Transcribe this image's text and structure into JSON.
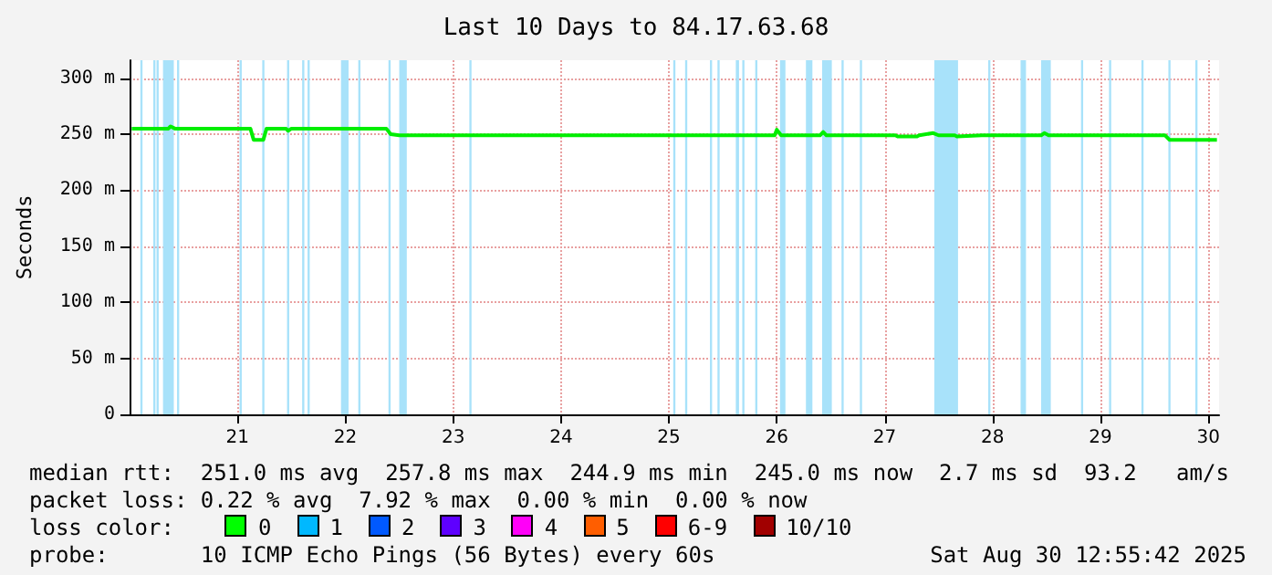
{
  "chart_data": {
    "type": "line",
    "title": "Last 10 Days to 84.17.63.68",
    "ylabel": "Seconds",
    "xlim": [
      20,
      30.1
    ],
    "xticks": [
      21,
      22,
      23,
      24,
      25,
      26,
      27,
      28,
      29,
      30
    ],
    "ylim": [
      0,
      316
    ],
    "yticks": [
      {
        "value": 0,
        "label": "0"
      },
      {
        "value": 50,
        "label": "50 m"
      },
      {
        "value": 100,
        "label": "100 m"
      },
      {
        "value": 150,
        "label": "150 m"
      },
      {
        "value": 200,
        "label": "200 m"
      },
      {
        "value": 250,
        "label": "250 m"
      },
      {
        "value": 300,
        "label": "300 m"
      }
    ],
    "grid": true,
    "series": [
      {
        "color": "#00ee00",
        "x": [
          20.02,
          20.36,
          20.38,
          20.42,
          21.12,
          21.15,
          21.24,
          21.27,
          21.45,
          21.47,
          21.5,
          22.38,
          22.42,
          22.5,
          25.98,
          26.0,
          26.04,
          26.4,
          26.43,
          26.46,
          27.1,
          27.12,
          27.3,
          27.32,
          27.45,
          27.5,
          27.65,
          27.67,
          27.9,
          28.45,
          28.48,
          28.52,
          29.6,
          29.64,
          30.08
        ],
        "values": [
          255,
          255,
          257,
          255,
          255,
          245,
          245,
          255,
          255,
          253,
          255,
          255,
          250,
          249,
          249,
          254,
          249,
          249,
          252,
          249,
          249,
          248,
          248,
          249,
          251,
          249,
          249,
          248,
          249,
          249,
          251,
          249,
          249,
          245,
          245
        ]
      }
    ],
    "bands": [
      {
        "axis": "x",
        "from": 20.1,
        "to": 20.12,
        "color": "#a8e2fa"
      },
      {
        "axis": "x",
        "from": 20.22,
        "to": 20.24,
        "color": "#a8e2fa"
      },
      {
        "axis": "x",
        "from": 20.25,
        "to": 20.27,
        "color": "#a8e2fa"
      },
      {
        "axis": "x",
        "from": 20.31,
        "to": 20.41,
        "color": "#a8e2fa"
      },
      {
        "axis": "x",
        "from": 20.44,
        "to": 20.46,
        "color": "#a8e2fa"
      },
      {
        "axis": "x",
        "from": 21.02,
        "to": 21.04,
        "color": "#a8e2fa"
      },
      {
        "axis": "x",
        "from": 21.23,
        "to": 21.25,
        "color": "#a8e2fa"
      },
      {
        "axis": "x",
        "from": 21.46,
        "to": 21.48,
        "color": "#a8e2fa"
      },
      {
        "axis": "x",
        "from": 21.6,
        "to": 21.62,
        "color": "#a8e2fa"
      },
      {
        "axis": "x",
        "from": 21.65,
        "to": 21.67,
        "color": "#a8e2fa"
      },
      {
        "axis": "x",
        "from": 21.96,
        "to": 22.03,
        "color": "#a8e2fa"
      },
      {
        "axis": "x",
        "from": 22.12,
        "to": 22.14,
        "color": "#a8e2fa"
      },
      {
        "axis": "x",
        "from": 22.4,
        "to": 22.42,
        "color": "#a8e2fa"
      },
      {
        "axis": "x",
        "from": 22.5,
        "to": 22.57,
        "color": "#a8e2fa"
      },
      {
        "axis": "x",
        "from": 23.15,
        "to": 23.17,
        "color": "#a8e2fa"
      },
      {
        "axis": "x",
        "from": 25.04,
        "to": 25.06,
        "color": "#a8e2fa"
      },
      {
        "axis": "x",
        "from": 25.15,
        "to": 25.17,
        "color": "#a8e2fa"
      },
      {
        "axis": "x",
        "from": 25.38,
        "to": 25.4,
        "color": "#a8e2fa"
      },
      {
        "axis": "x",
        "from": 25.45,
        "to": 25.47,
        "color": "#a8e2fa"
      },
      {
        "axis": "x",
        "from": 25.62,
        "to": 25.65,
        "color": "#a8e2fa"
      },
      {
        "axis": "x",
        "from": 25.68,
        "to": 25.7,
        "color": "#a8e2fa"
      },
      {
        "axis": "x",
        "from": 25.8,
        "to": 25.82,
        "color": "#a8e2fa"
      },
      {
        "axis": "x",
        "from": 26.03,
        "to": 26.08,
        "color": "#a8e2fa"
      },
      {
        "axis": "x",
        "from": 26.27,
        "to": 26.33,
        "color": "#a8e2fa"
      },
      {
        "axis": "x",
        "from": 26.42,
        "to": 26.51,
        "color": "#a8e2fa"
      },
      {
        "axis": "x",
        "from": 26.6,
        "to": 26.62,
        "color": "#a8e2fa"
      },
      {
        "axis": "x",
        "from": 26.77,
        "to": 26.79,
        "color": "#a8e2fa"
      },
      {
        "axis": "x",
        "from": 27.46,
        "to": 27.68,
        "color": "#a8e2fa"
      },
      {
        "axis": "x",
        "from": 27.96,
        "to": 27.98,
        "color": "#a8e2fa"
      },
      {
        "axis": "x",
        "from": 28.26,
        "to": 28.31,
        "color": "#a8e2fa"
      },
      {
        "axis": "x",
        "from": 28.45,
        "to": 28.54,
        "color": "#a8e2fa"
      },
      {
        "axis": "x",
        "from": 28.82,
        "to": 28.84,
        "color": "#a8e2fa"
      },
      {
        "axis": "x",
        "from": 29.08,
        "to": 29.1,
        "color": "#a8e2fa"
      },
      {
        "axis": "x",
        "from": 29.38,
        "to": 29.4,
        "color": "#a8e2fa"
      },
      {
        "axis": "x",
        "from": 29.63,
        "to": 29.65,
        "color": "#a8e2fa"
      },
      {
        "axis": "x",
        "from": 29.88,
        "to": 29.9,
        "color": "#a8e2fa"
      }
    ],
    "annotations": [
      "median rtt:  251.0 ms avg  257.8 ms max  244.9 ms min  245.0 ms now  2.7 ms sd  93.2   am/s",
      "packet loss: 0.22 % avg  7.92 % max  0.00 % min  0.00 % now",
      "loss color:",
      "0",
      "1",
      "2",
      "3",
      "4",
      "5",
      "6-9",
      "10/10",
      "probe:       10 ICMP Echo Pings (56 Bytes) every 60s",
      "Sat Aug 30 12:55:42 2025"
    ]
  }
}
